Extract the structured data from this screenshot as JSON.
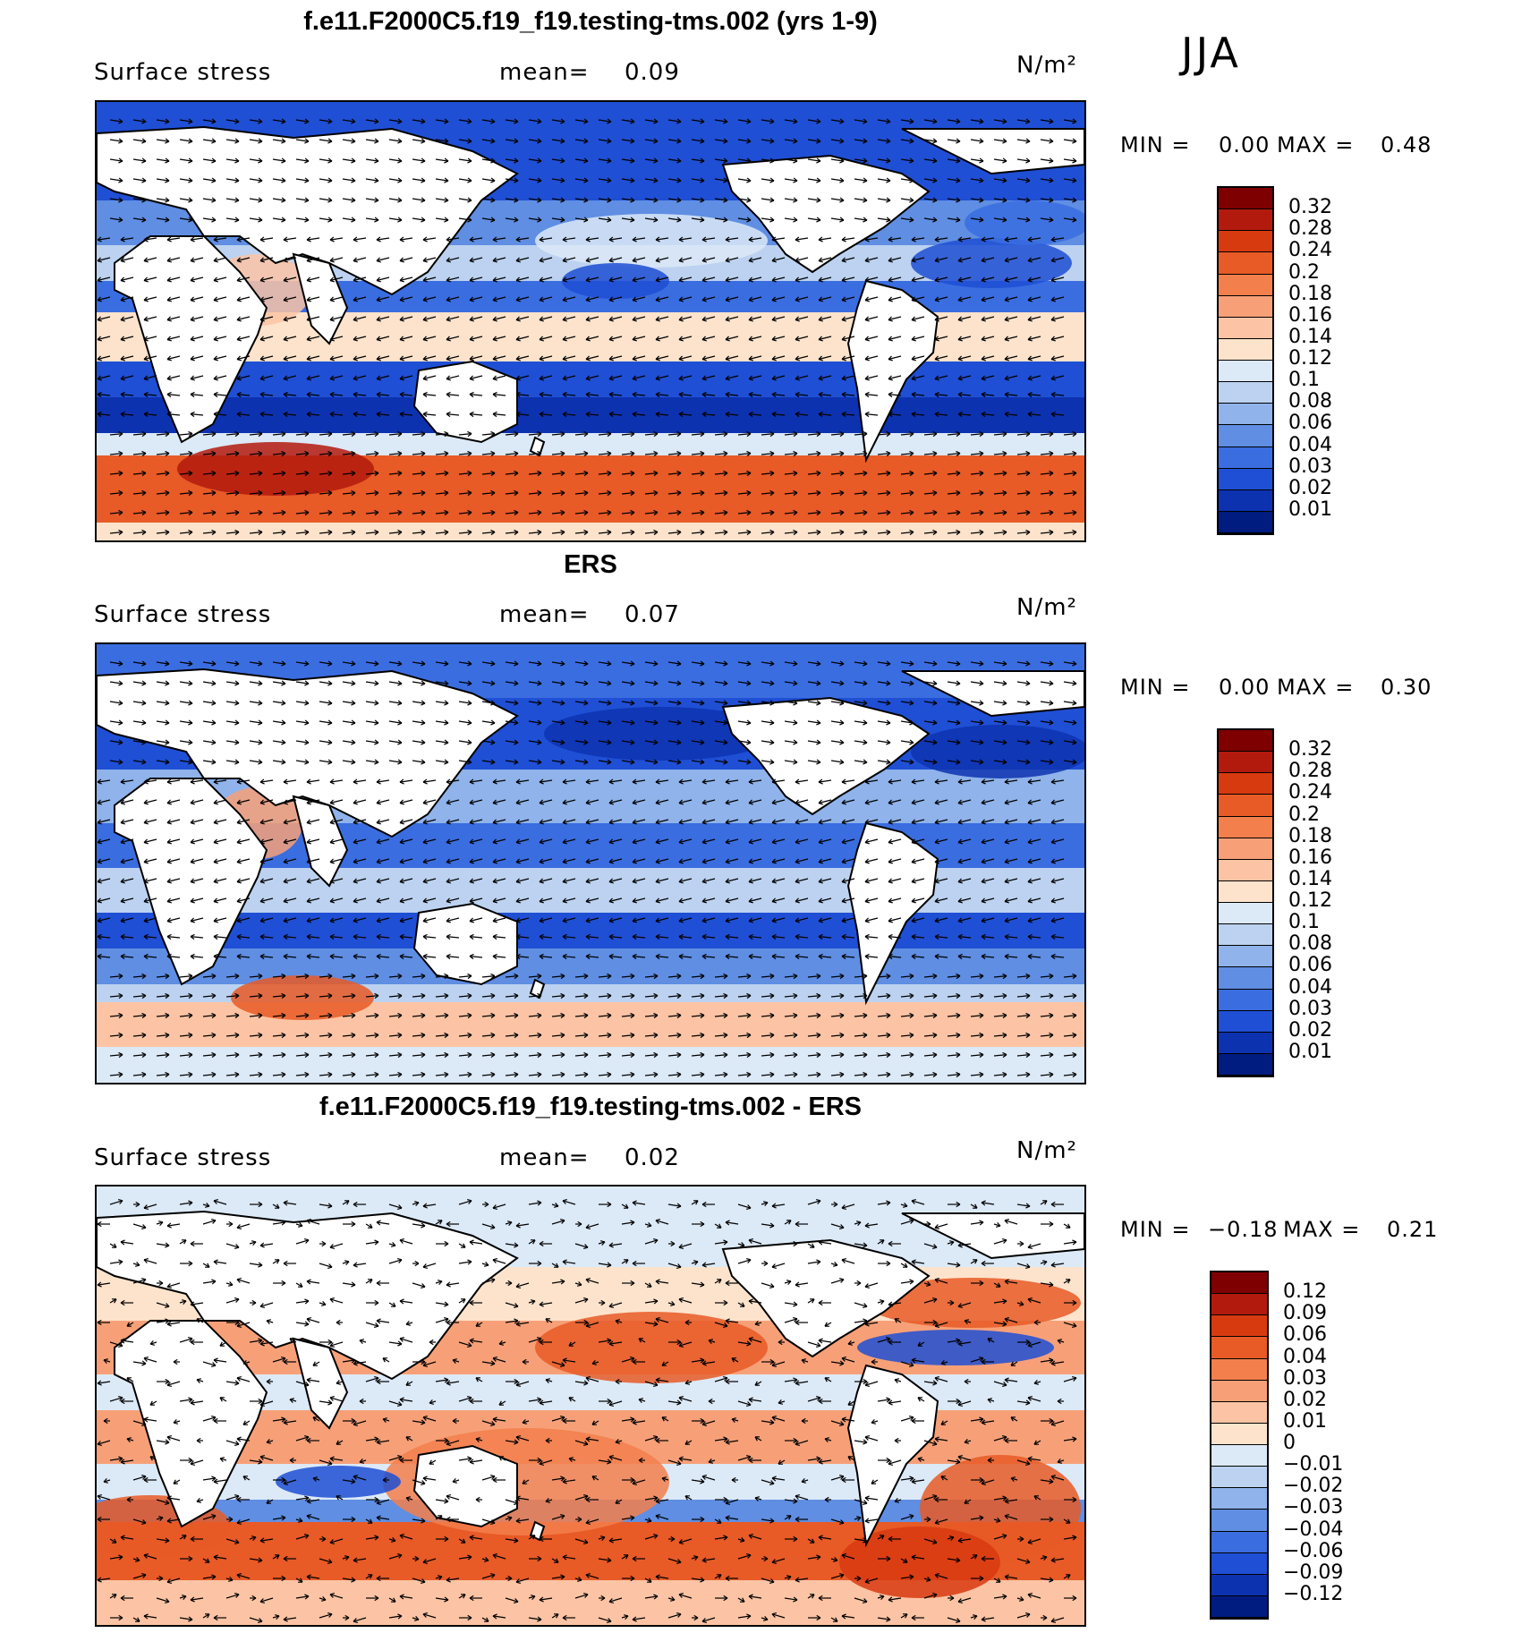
{
  "chart_data": [
    {
      "type": "heatmap",
      "title": "f.e11.F2000C5.f19_f19.testing-tms.002 (yrs 1-9)",
      "variable": "Surface stress",
      "mean_label": "mean=",
      "mean": "0.09",
      "units": "N/m²",
      "min_label": "MIN =",
      "min": "0.00",
      "max_label": "MAX =",
      "max": "0.48",
      "colorbar": {
        "levels": [
          "0.32",
          "0.28",
          "0.24",
          "0.2",
          "0.18",
          "0.16",
          "0.14",
          "0.12",
          "0.1",
          "0.08",
          "0.06",
          "0.04",
          "0.03",
          "0.02",
          "0.01"
        ],
        "colors": [
          "#7f0000",
          "#b31a0e",
          "#d83a10",
          "#e85a26",
          "#f37f4c",
          "#f7a078",
          "#fcc4a4",
          "#fde3cc",
          "#dce9f7",
          "#bcd2f0",
          "#8fb3ea",
          "#5f8ee3",
          "#3a6de0",
          "#1f4fd4",
          "#0d32b0",
          "#001c80"
        ]
      }
    },
    {
      "type": "heatmap",
      "title": "ERS",
      "variable": "Surface stress",
      "mean_label": "mean=",
      "mean": "0.07",
      "units": "N/m²",
      "min_label": "MIN =",
      "min": "0.00",
      "max_label": "MAX =",
      "max": "0.30",
      "colorbar": {
        "levels": [
          "0.32",
          "0.28",
          "0.24",
          "0.2",
          "0.18",
          "0.16",
          "0.14",
          "0.12",
          "0.1",
          "0.08",
          "0.06",
          "0.04",
          "0.03",
          "0.02",
          "0.01"
        ],
        "colors": [
          "#7f0000",
          "#b31a0e",
          "#d83a10",
          "#e85a26",
          "#f37f4c",
          "#f7a078",
          "#fcc4a4",
          "#fde3cc",
          "#dce9f7",
          "#bcd2f0",
          "#8fb3ea",
          "#5f8ee3",
          "#3a6de0",
          "#1f4fd4",
          "#0d32b0",
          "#001c80"
        ]
      }
    },
    {
      "type": "heatmap",
      "title": "f.e11.F2000C5.f19_f19.testing-tms.002 - ERS",
      "variable": "Surface stress",
      "mean_label": "mean=",
      "mean": "0.02",
      "units": "N/m²",
      "min_label": "MIN =",
      "min": "−0.18",
      "max_label": "MAX =",
      "max": "0.21",
      "colorbar": {
        "levels": [
          "0.12",
          "0.09",
          "0.06",
          "0.04",
          "0.03",
          "0.02",
          "0.01",
          "0",
          "−0.01",
          "−0.02",
          "−0.03",
          "−0.04",
          "−0.06",
          "−0.09",
          "−0.12"
        ],
        "colors": [
          "#7f0000",
          "#b31a0e",
          "#d83a10",
          "#e85a26",
          "#f37f4c",
          "#f7a078",
          "#fcc4a4",
          "#fde3cc",
          "#dce9f7",
          "#bcd2f0",
          "#8fb3ea",
          "#5f8ee3",
          "#3a6de0",
          "#1f4fd4",
          "#0d32b0",
          "#001c80"
        ]
      }
    }
  ],
  "season": "JJA"
}
